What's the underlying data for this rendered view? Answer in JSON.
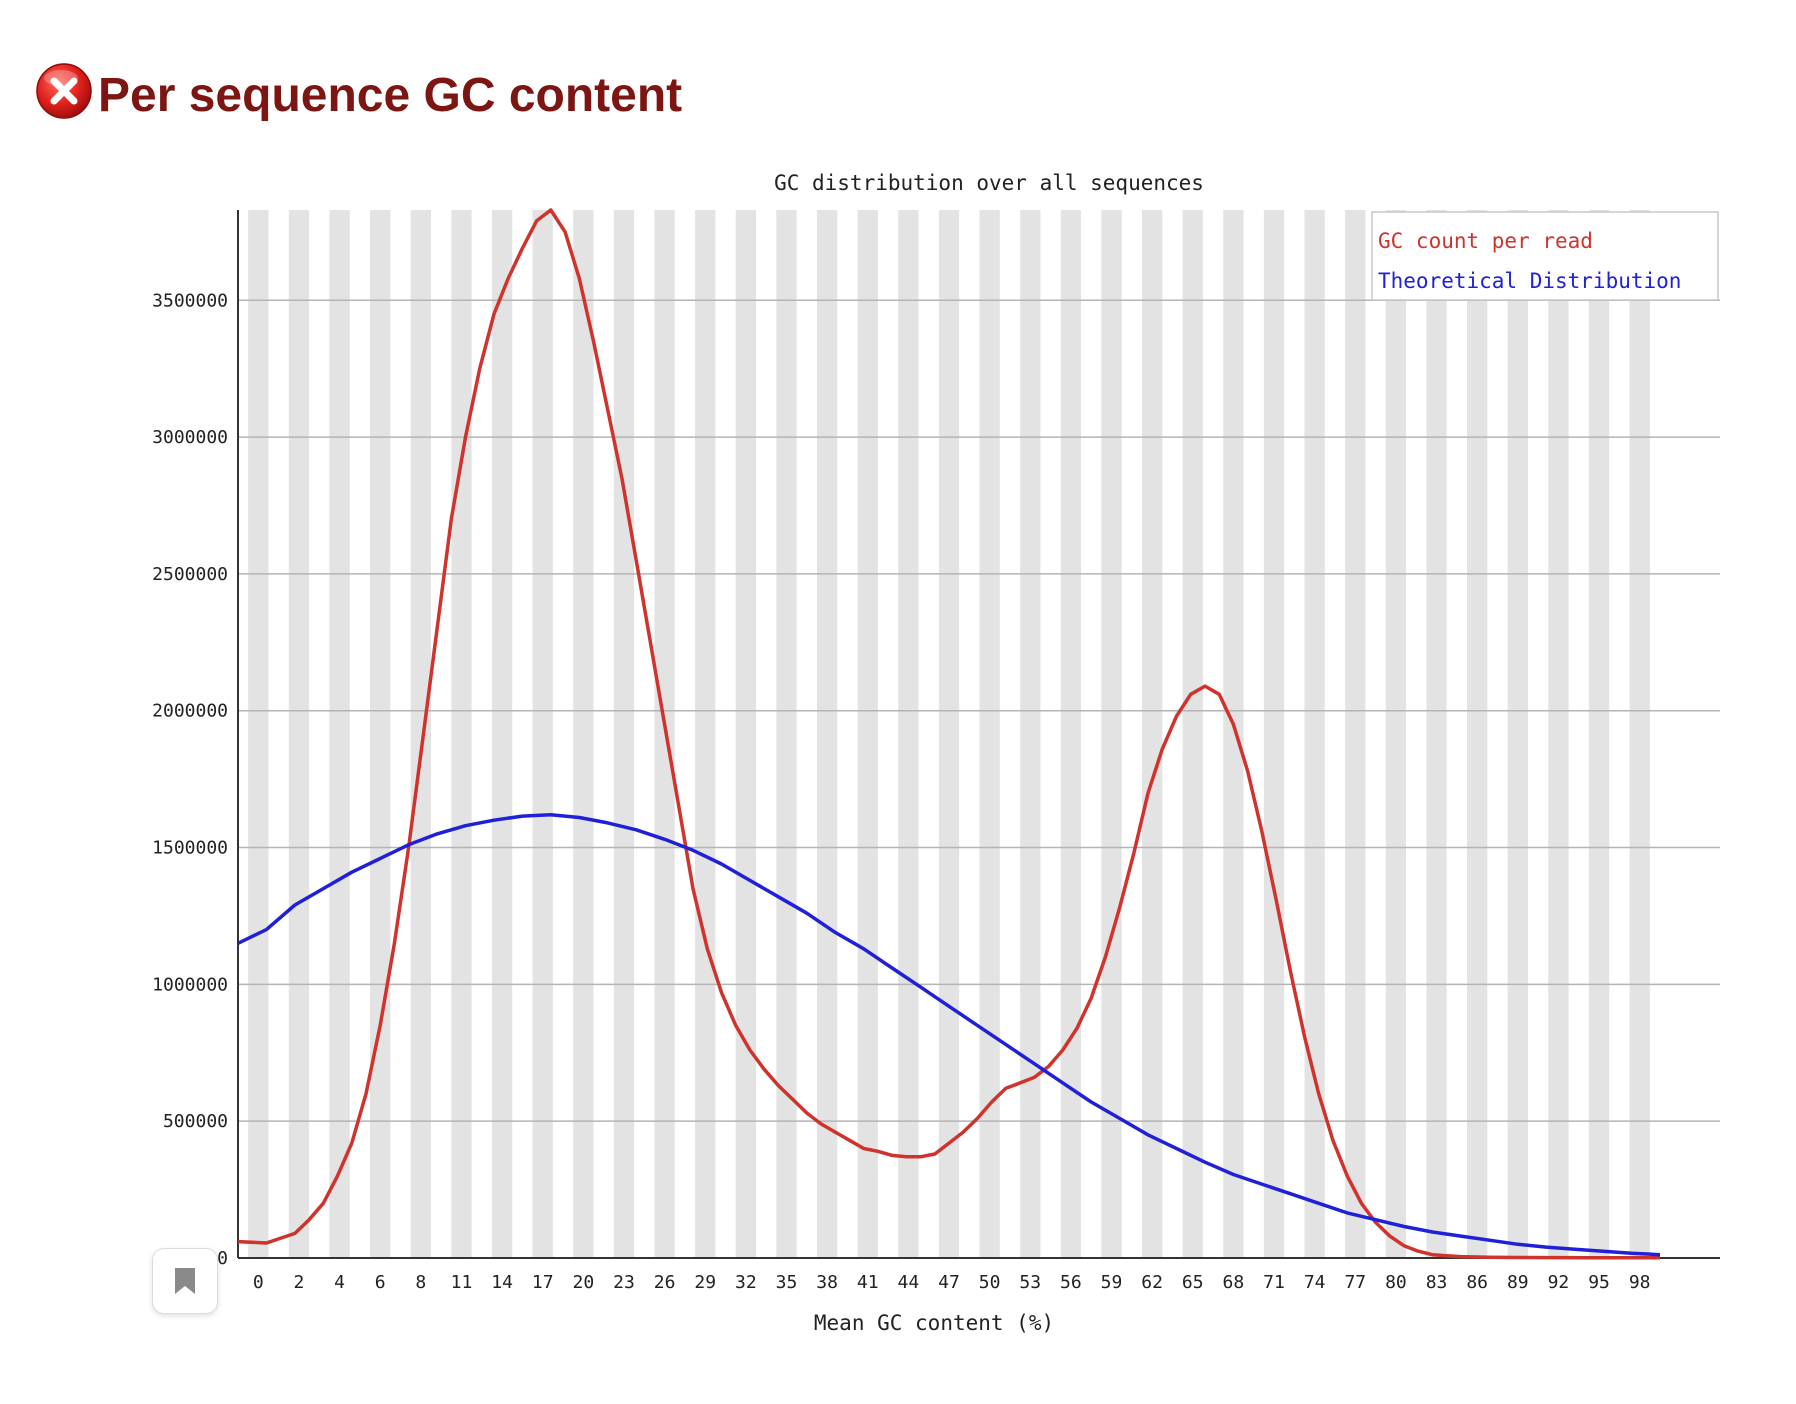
{
  "header": {
    "title": "Per sequence GC content",
    "status_icon": "fail-icon",
    "status_color": "#e0221e"
  },
  "chart_data": {
    "type": "line",
    "title": "GC distribution over all sequences",
    "xlabel": "Mean GC content (%)",
    "ylabel": "",
    "xlim": [
      0,
      100
    ],
    "ylim": [
      0,
      3830000
    ],
    "x_tick_labels": [
      "0",
      "2",
      "4",
      "6",
      "8",
      "11",
      "14",
      "17",
      "20",
      "23",
      "26",
      "29",
      "32",
      "35",
      "38",
      "41",
      "44",
      "47",
      "50",
      "53",
      "56",
      "59",
      "62",
      "65",
      "68",
      "71",
      "74",
      "77",
      "80",
      "83",
      "86",
      "89",
      "92",
      "95",
      "98"
    ],
    "y_ticks": [
      0,
      500000,
      1000000,
      1500000,
      2000000,
      2500000,
      3000000,
      3500000
    ],
    "y_tick_labels": [
      "0",
      "500000",
      "1000000",
      "1500000",
      "2000000",
      "2500000",
      "3000000",
      "3500000"
    ],
    "grid": "horizontal lines, alternating vertical stripes",
    "legend_position": "top-right",
    "series": [
      {
        "name": "GC count per read",
        "color": "#d0322c",
        "points": [
          [
            0,
            60000
          ],
          [
            2,
            55000
          ],
          [
            4,
            90000
          ],
          [
            5,
            140000
          ],
          [
            6,
            200000
          ],
          [
            7,
            300000
          ],
          [
            8,
            420000
          ],
          [
            9,
            600000
          ],
          [
            10,
            850000
          ],
          [
            11,
            1150000
          ],
          [
            12,
            1500000
          ],
          [
            13,
            1900000
          ],
          [
            14,
            2300000
          ],
          [
            15,
            2700000
          ],
          [
            16,
            3000000
          ],
          [
            17,
            3250000
          ],
          [
            18,
            3450000
          ],
          [
            19,
            3580000
          ],
          [
            20,
            3690000
          ],
          [
            21,
            3790000
          ],
          [
            22,
            3830000
          ],
          [
            23,
            3750000
          ],
          [
            24,
            3580000
          ],
          [
            25,
            3350000
          ],
          [
            26,
            3100000
          ],
          [
            27,
            2850000
          ],
          [
            28,
            2550000
          ],
          [
            29,
            2250000
          ],
          [
            30,
            1950000
          ],
          [
            31,
            1650000
          ],
          [
            32,
            1350000
          ],
          [
            33,
            1130000
          ],
          [
            34,
            970000
          ],
          [
            35,
            850000
          ],
          [
            36,
            760000
          ],
          [
            37,
            690000
          ],
          [
            38,
            630000
          ],
          [
            39,
            580000
          ],
          [
            40,
            530000
          ],
          [
            41,
            490000
          ],
          [
            42,
            460000
          ],
          [
            43,
            430000
          ],
          [
            44,
            400000
          ],
          [
            45,
            390000
          ],
          [
            46,
            375000
          ],
          [
            47,
            370000
          ],
          [
            48,
            370000
          ],
          [
            49,
            380000
          ],
          [
            50,
            420000
          ],
          [
            51,
            460000
          ],
          [
            52,
            510000
          ],
          [
            53,
            570000
          ],
          [
            54,
            620000
          ],
          [
            55,
            640000
          ],
          [
            56,
            660000
          ],
          [
            57,
            700000
          ],
          [
            58,
            760000
          ],
          [
            59,
            840000
          ],
          [
            60,
            950000
          ],
          [
            61,
            1100000
          ],
          [
            62,
            1280000
          ],
          [
            63,
            1480000
          ],
          [
            64,
            1700000
          ],
          [
            65,
            1860000
          ],
          [
            66,
            1980000
          ],
          [
            67,
            2060000
          ],
          [
            68,
            2090000
          ],
          [
            69,
            2060000
          ],
          [
            70,
            1950000
          ],
          [
            71,
            1780000
          ],
          [
            72,
            1560000
          ],
          [
            73,
            1310000
          ],
          [
            74,
            1050000
          ],
          [
            75,
            810000
          ],
          [
            76,
            600000
          ],
          [
            77,
            430000
          ],
          [
            78,
            300000
          ],
          [
            79,
            200000
          ],
          [
            80,
            130000
          ],
          [
            81,
            80000
          ],
          [
            82,
            45000
          ],
          [
            83,
            25000
          ],
          [
            84,
            12000
          ],
          [
            85,
            8000
          ],
          [
            86,
            5000
          ],
          [
            88,
            3000
          ],
          [
            90,
            2000
          ],
          [
            95,
            1000
          ],
          [
            100,
            1000
          ]
        ]
      },
      {
        "name": "Theoretical Distribution",
        "color": "#2020d8",
        "points": [
          [
            0,
            1150000
          ],
          [
            2,
            1200000
          ],
          [
            4,
            1290000
          ],
          [
            6,
            1350000
          ],
          [
            8,
            1410000
          ],
          [
            10,
            1460000
          ],
          [
            12,
            1510000
          ],
          [
            14,
            1550000
          ],
          [
            16,
            1580000
          ],
          [
            18,
            1600000
          ],
          [
            20,
            1615000
          ],
          [
            22,
            1620000
          ],
          [
            24,
            1610000
          ],
          [
            26,
            1590000
          ],
          [
            28,
            1565000
          ],
          [
            30,
            1530000
          ],
          [
            32,
            1490000
          ],
          [
            34,
            1440000
          ],
          [
            36,
            1380000
          ],
          [
            38,
            1320000
          ],
          [
            40,
            1260000
          ],
          [
            42,
            1190000
          ],
          [
            44,
            1130000
          ],
          [
            46,
            1060000
          ],
          [
            48,
            990000
          ],
          [
            50,
            920000
          ],
          [
            52,
            850000
          ],
          [
            54,
            780000
          ],
          [
            56,
            710000
          ],
          [
            58,
            640000
          ],
          [
            60,
            570000
          ],
          [
            62,
            510000
          ],
          [
            64,
            450000
          ],
          [
            66,
            400000
          ],
          [
            68,
            350000
          ],
          [
            70,
            305000
          ],
          [
            72,
            270000
          ],
          [
            74,
            235000
          ],
          [
            76,
            200000
          ],
          [
            78,
            165000
          ],
          [
            80,
            140000
          ],
          [
            82,
            115000
          ],
          [
            84,
            95000
          ],
          [
            86,
            80000
          ],
          [
            88,
            65000
          ],
          [
            90,
            50000
          ],
          [
            92,
            40000
          ],
          [
            94,
            32000
          ],
          [
            96,
            25000
          ],
          [
            98,
            17000
          ],
          [
            100,
            12000
          ]
        ]
      }
    ]
  }
}
